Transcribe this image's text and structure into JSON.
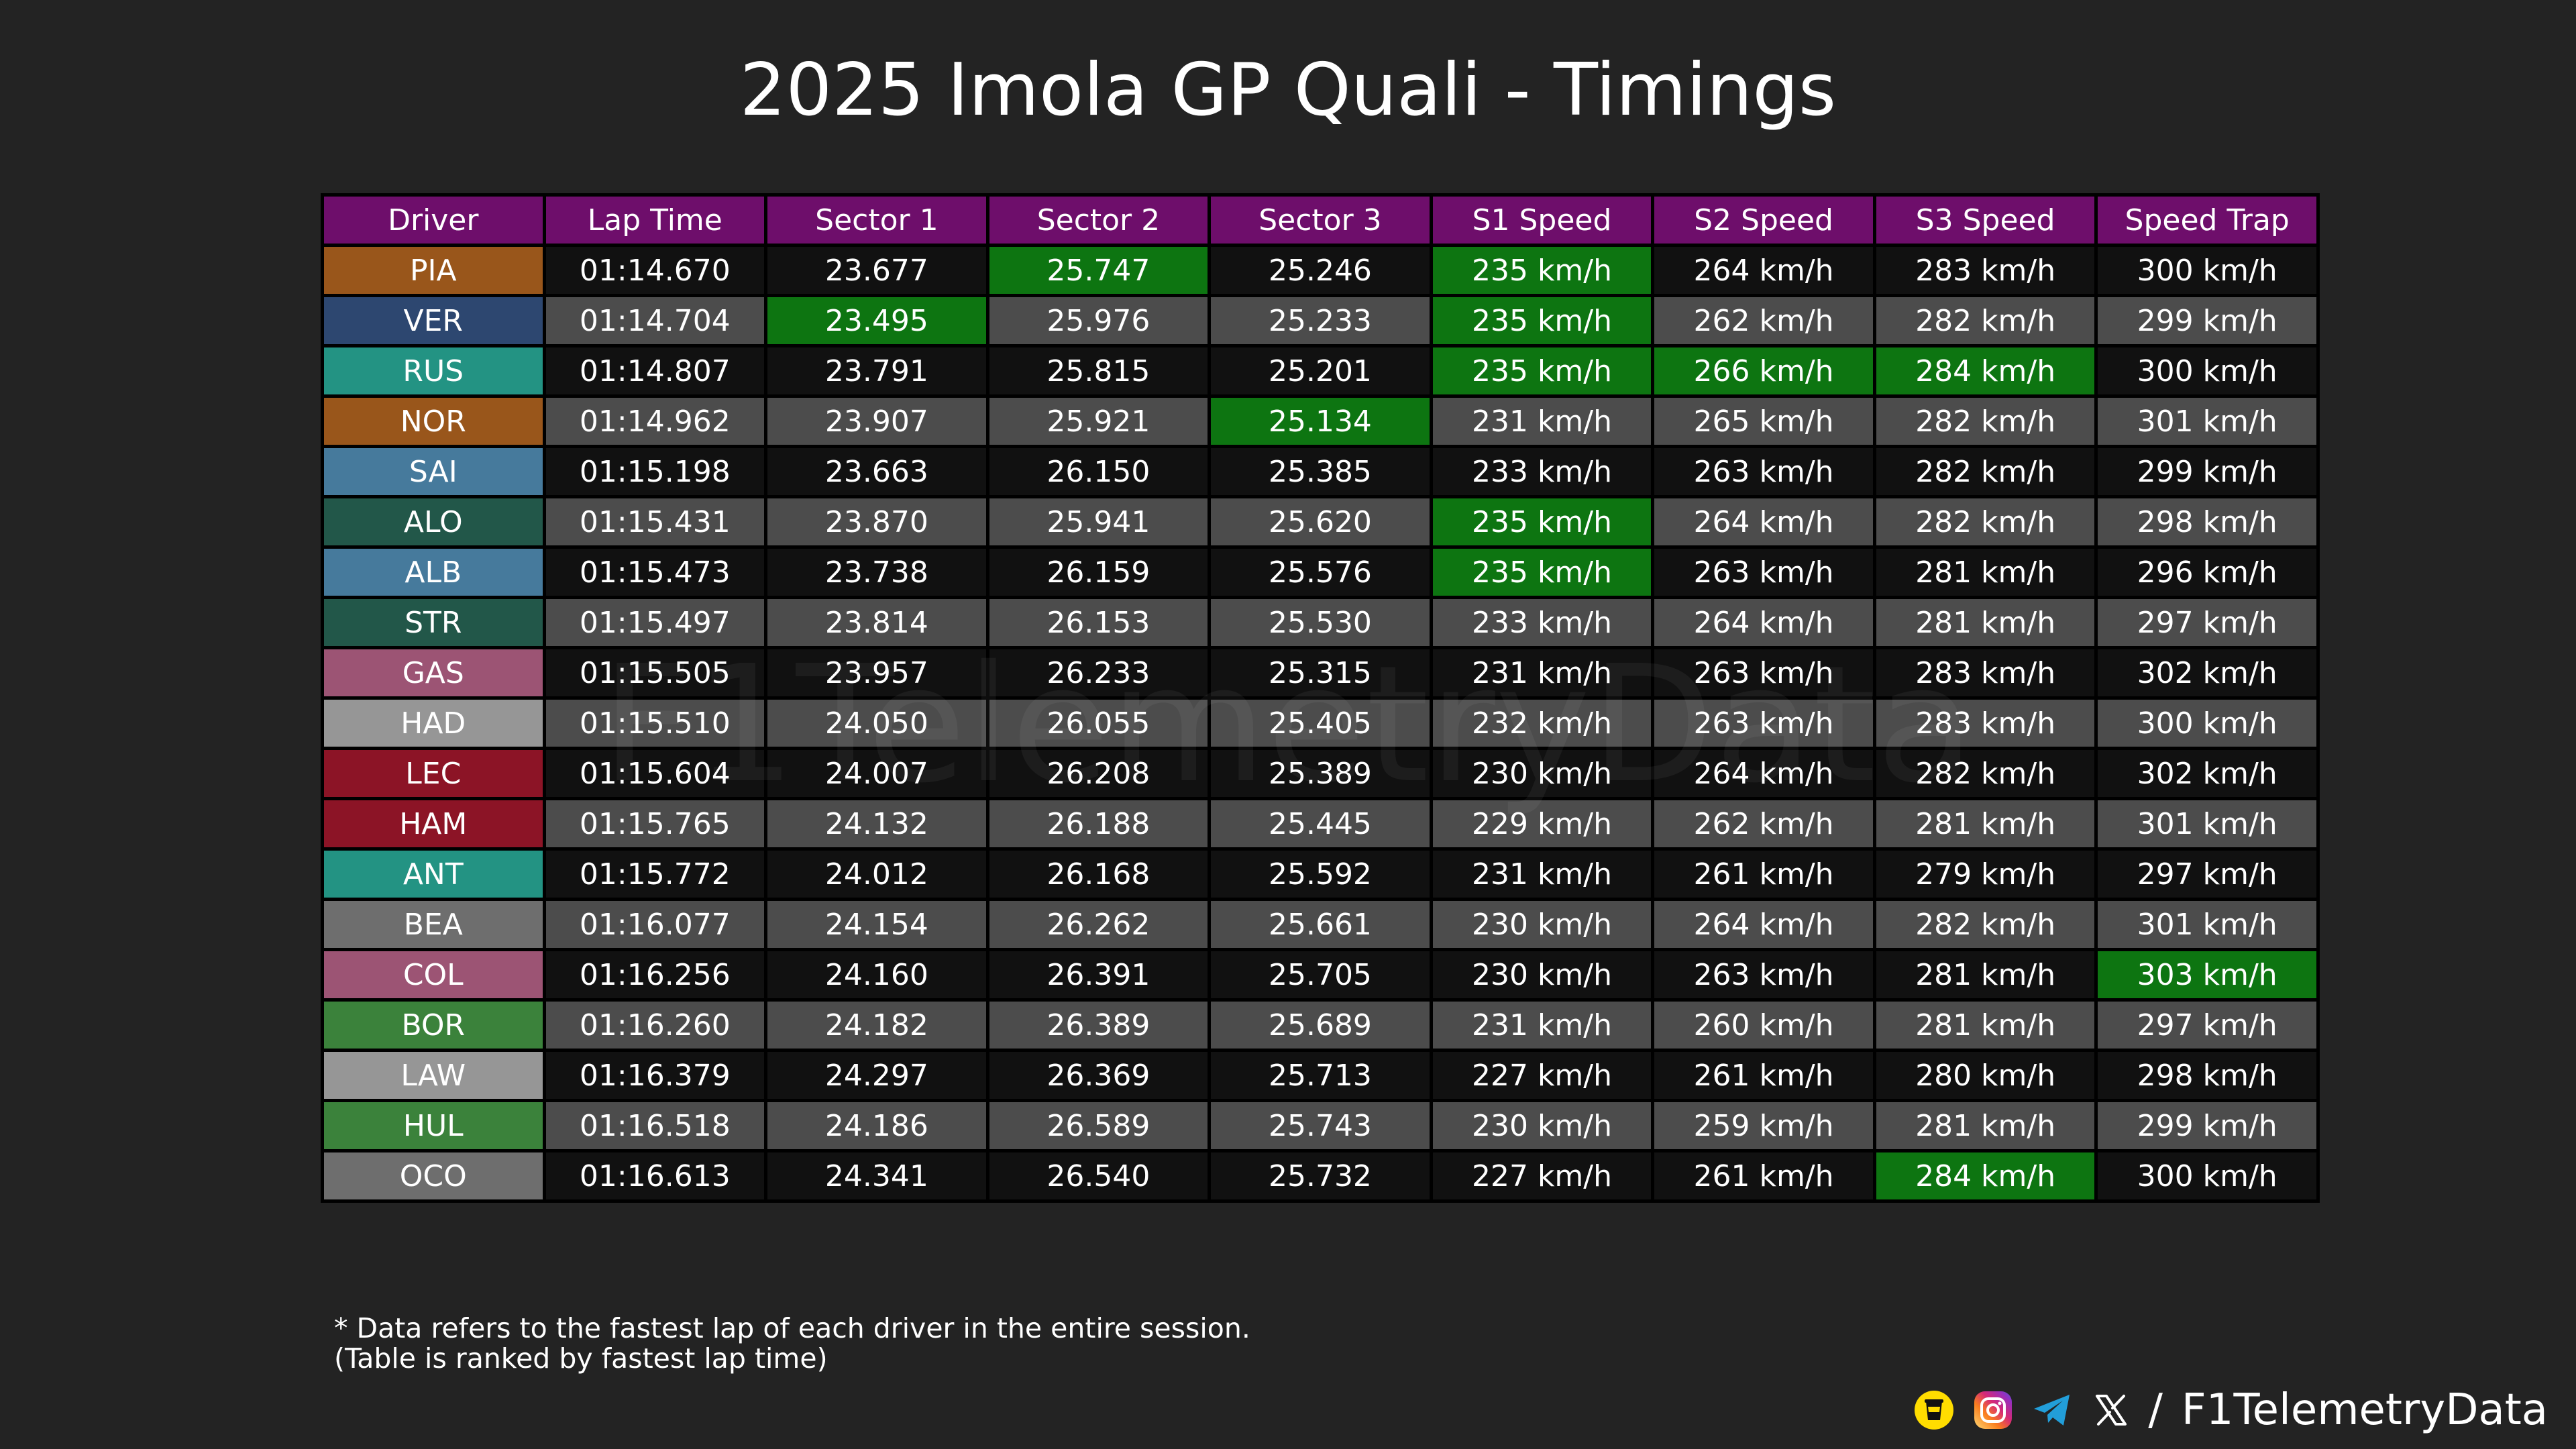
{
  "title": "2025 Imola GP Quali - Timings",
  "watermark": "F1TelemetryData",
  "chart_data": {
    "type": "table",
    "columns": [
      "Driver",
      "Lap Time",
      "Sector 1",
      "Sector 2",
      "Sector 3",
      "S1 Speed",
      "S2 Speed",
      "S3 Speed",
      "Speed Trap"
    ],
    "rows": [
      [
        "PIA",
        "01:14.670",
        "23.677",
        "25.747",
        "25.246",
        "235 km/h",
        "264 km/h",
        "283 km/h",
        "300 km/h"
      ],
      [
        "VER",
        "01:14.704",
        "23.495",
        "25.976",
        "25.233",
        "235 km/h",
        "262 km/h",
        "282 km/h",
        "299 km/h"
      ],
      [
        "RUS",
        "01:14.807",
        "23.791",
        "25.815",
        "25.201",
        "235 km/h",
        "266 km/h",
        "284 km/h",
        "300 km/h"
      ],
      [
        "NOR",
        "01:14.962",
        "23.907",
        "25.921",
        "25.134",
        "231 km/h",
        "265 km/h",
        "282 km/h",
        "301 km/h"
      ],
      [
        "SAI",
        "01:15.198",
        "23.663",
        "26.150",
        "25.385",
        "233 km/h",
        "263 km/h",
        "282 km/h",
        "299 km/h"
      ],
      [
        "ALO",
        "01:15.431",
        "23.870",
        "25.941",
        "25.620",
        "235 km/h",
        "264 km/h",
        "282 km/h",
        "298 km/h"
      ],
      [
        "ALB",
        "01:15.473",
        "23.738",
        "26.159",
        "25.576",
        "235 km/h",
        "263 km/h",
        "281 km/h",
        "296 km/h"
      ],
      [
        "STR",
        "01:15.497",
        "23.814",
        "26.153",
        "25.530",
        "233 km/h",
        "264 km/h",
        "281 km/h",
        "297 km/h"
      ],
      [
        "GAS",
        "01:15.505",
        "23.957",
        "26.233",
        "25.315",
        "231 km/h",
        "263 km/h",
        "283 km/h",
        "302 km/h"
      ],
      [
        "HAD",
        "01:15.510",
        "24.050",
        "26.055",
        "25.405",
        "232 km/h",
        "263 km/h",
        "283 km/h",
        "300 km/h"
      ],
      [
        "LEC",
        "01:15.604",
        "24.007",
        "26.208",
        "25.389",
        "230 km/h",
        "264 km/h",
        "282 km/h",
        "302 km/h"
      ],
      [
        "HAM",
        "01:15.765",
        "24.132",
        "26.188",
        "25.445",
        "229 km/h",
        "262 km/h",
        "281 km/h",
        "301 km/h"
      ],
      [
        "ANT",
        "01:15.772",
        "24.012",
        "26.168",
        "25.592",
        "231 km/h",
        "261 km/h",
        "279 km/h",
        "297 km/h"
      ],
      [
        "BEA",
        "01:16.077",
        "24.154",
        "26.262",
        "25.661",
        "230 km/h",
        "264 km/h",
        "282 km/h",
        "301 km/h"
      ],
      [
        "COL",
        "01:16.256",
        "24.160",
        "26.391",
        "25.705",
        "230 km/h",
        "263 km/h",
        "281 km/h",
        "303 km/h"
      ],
      [
        "BOR",
        "01:16.260",
        "24.182",
        "26.389",
        "25.689",
        "231 km/h",
        "260 km/h",
        "281 km/h",
        "297 km/h"
      ],
      [
        "LAW",
        "01:16.379",
        "24.297",
        "26.369",
        "25.713",
        "227 km/h",
        "261 km/h",
        "280 km/h",
        "298 km/h"
      ],
      [
        "HUL",
        "01:16.518",
        "24.186",
        "26.589",
        "25.743",
        "230 km/h",
        "259 km/h",
        "281 km/h",
        "299 km/h"
      ],
      [
        "OCO",
        "01:16.613",
        "24.341",
        "26.540",
        "25.732",
        "227 km/h",
        "261 km/h",
        "284 km/h",
        "300 km/h"
      ]
    ],
    "driver_colors": {
      "PIA": "#99561b",
      "VER": "#2d4770",
      "RUS": "#239383",
      "NOR": "#99561b",
      "SAI": "#467a9c",
      "ALO": "#225749",
      "ALB": "#467a9c",
      "STR": "#225749",
      "GAS": "#9c5474",
      "HAD": "#969696",
      "LEC": "#8c1426",
      "HAM": "#8c1426",
      "ANT": "#239383",
      "BEA": "#6e6e6e",
      "COL": "#9c5474",
      "BOR": "#3b823b",
      "LAW": "#969696",
      "HUL": "#3b823b",
      "OCO": "#6e6e6e"
    },
    "highlighted_cells": [
      [
        0,
        3
      ],
      [
        1,
        2
      ],
      [
        3,
        4
      ],
      [
        0,
        5
      ],
      [
        1,
        5
      ],
      [
        2,
        5
      ],
      [
        5,
        5
      ],
      [
        6,
        5
      ],
      [
        2,
        6
      ],
      [
        2,
        7
      ],
      [
        18,
        7
      ],
      [
        14,
        8
      ]
    ],
    "colors": {
      "header": "#6e0e6b",
      "highlight": "#0d7511",
      "row_dark": "#111111",
      "row_light": "#4c4c4c",
      "background": "#232323"
    }
  },
  "note": {
    "line1": "* Data refers to the fastest lap of each driver in the entire session.",
    "line2": "(Table is ranked by fastest lap time)"
  },
  "footer": {
    "slash": "/",
    "handle": "F1TelemetryData",
    "icons": [
      "coffee-cup-icon",
      "instagram-icon",
      "telegram-icon",
      "x-icon"
    ]
  }
}
